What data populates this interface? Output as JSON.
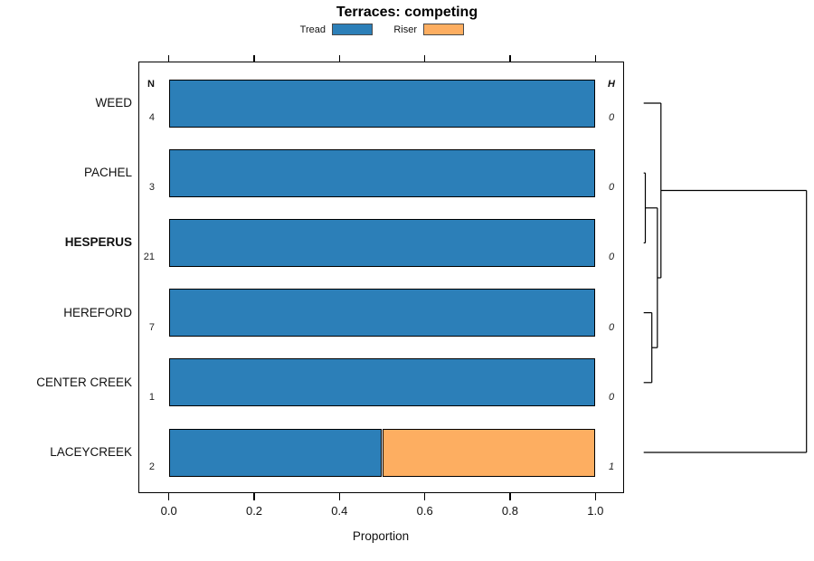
{
  "chart_data": {
    "type": "bar",
    "orientation": "horizontal",
    "stacked": true,
    "title": "Terraces: competing",
    "xlabel": "Proportion",
    "xlim": [
      0,
      1
    ],
    "x_ticks": [
      0,
      0.2,
      0.4,
      0.6,
      0.8,
      1.0
    ],
    "x_tick_labels": [
      "0.0",
      "0.2",
      "0.4",
      "0.6",
      "0.8",
      "1.0"
    ],
    "legend_position": "top",
    "grid": false,
    "categories": [
      "WEED",
      "PACHEL",
      "HESPERUS",
      "HEREFORD",
      "CENTER CREEK",
      "LACEYCREEK"
    ],
    "emphasized_category": "HESPERUS",
    "series": [
      {
        "name": "Tread",
        "color": "#2C7FB8",
        "values": [
          1.0,
          1.0,
          1.0,
          1.0,
          1.0,
          0.5
        ]
      },
      {
        "name": "Riser",
        "color": "#FDAE61",
        "values": [
          0,
          0,
          0,
          0,
          0,
          0.5
        ]
      }
    ],
    "annotations": {
      "n_header": "N",
      "n_values": [
        4,
        3,
        21,
        7,
        1,
        2
      ],
      "h_header": "H",
      "h_values": [
        0,
        0,
        0,
        0,
        0,
        1
      ]
    },
    "dendrogram": {
      "description": "hierarchical clustering of rows, heights normalized 0-1",
      "merges": [
        {
          "children": [
            "PACHEL",
            "HESPERUS"
          ],
          "height": 0.01
        },
        {
          "children": [
            "HEREFORD",
            "CENTER CREEK"
          ],
          "height": 0.05
        },
        {
          "children": [
            "merge0",
            "merge1"
          ],
          "height": 0.084
        },
        {
          "children": [
            "WEED",
            "merge2"
          ],
          "height": 0.106
        },
        {
          "children": [
            "merge3",
            "LACEYCREEK"
          ],
          "height": 1.0
        }
      ]
    }
  }
}
